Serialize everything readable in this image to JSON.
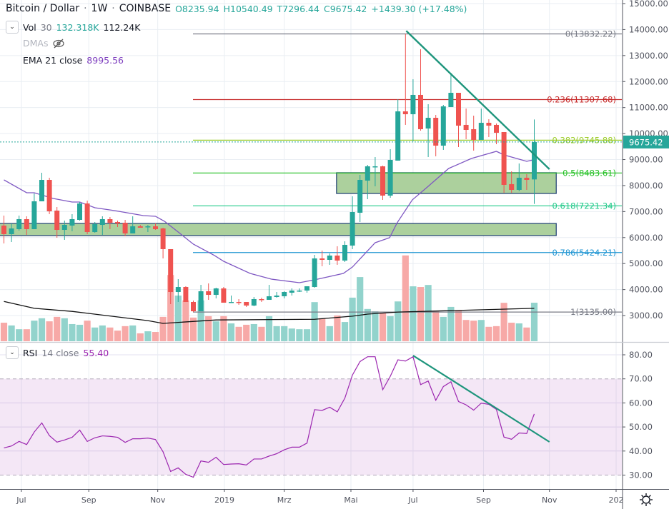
{
  "header": {
    "symbol": "Bitcoin / Dollar",
    "interval": "1W",
    "exchange": "COINBASE",
    "sep": "·",
    "open": "O8235.94",
    "high": "H10540.49",
    "low": "T7296.44",
    "close": "C9675.42",
    "change": "+1439.30 (+17.48%)"
  },
  "indicators": {
    "vol": {
      "name": "Vol",
      "length": "30",
      "value1": "132.318K",
      "value2": "112.24K"
    },
    "dmas": {
      "name": "DMAs"
    },
    "ema": {
      "name": "EMA 21 close",
      "value": "8995.56"
    },
    "rsi": {
      "name": "RSI",
      "params": "14 close",
      "value": "55.40"
    }
  },
  "colors": {
    "up": "#26a69a",
    "down": "#ef5350",
    "vol_up": "#92d3cc",
    "vol_down": "#f7a9a7",
    "ema": "#7e57c2",
    "rsi": "#9c27b0",
    "trend": "#1e957c",
    "zone_fill": "#a8cd98",
    "zone_border": "#2b4a7a"
  },
  "chart_data": {
    "type": "candlestick",
    "title": "Bitcoin / Dollar · 1W · COINBASE",
    "ylim": [
      2000,
      15000
    ],
    "price_ticks": [
      "15000.00",
      "14000.00",
      "13000.00",
      "12000.00",
      "11000.00",
      "10000.00",
      "9000.00",
      "8000.00",
      "7000.00",
      "6000.00",
      "5000.00",
      "4000.00",
      "3000.00"
    ],
    "time_ticks": [
      {
        "label": "Jul",
        "index": 2.3
      },
      {
        "label": "Sep",
        "index": 11.2
      },
      {
        "label": "Nov",
        "index": 20.3
      },
      {
        "label": "2019",
        "index": 29.1
      },
      {
        "label": "Mrz",
        "index": 37.0
      },
      {
        "label": "Mai",
        "index": 45.8
      },
      {
        "label": "Jul",
        "index": 54.0
      },
      {
        "label": "Sep",
        "index": 63.3
      },
      {
        "label": "Nov",
        "index": 72.0
      },
      {
        "label": "202",
        "index": 80.8
      }
    ],
    "ohlc": [
      [
        6461,
        6845,
        5774,
        6131
      ],
      [
        6131,
        6543,
        5829,
        6351
      ],
      [
        6323,
        6845,
        6268,
        6708
      ],
      [
        6708,
        6818,
        6104,
        6323
      ],
      [
        6323,
        7696,
        6323,
        7394
      ],
      [
        7394,
        8493,
        7394,
        8218
      ],
      [
        8218,
        8301,
        6900,
        7010
      ],
      [
        7037,
        7175,
        5994,
        6296
      ],
      [
        6296,
        6653,
        5912,
        6488
      ],
      [
        6461,
        6900,
        6241,
        6708
      ],
      [
        6680,
        7367,
        6653,
        7312
      ],
      [
        7312,
        7421,
        6131,
        6213
      ],
      [
        6213,
        6598,
        6186,
        6516
      ],
      [
        6488,
        6818,
        6104,
        6708
      ],
      [
        6708,
        6790,
        6323,
        6570
      ],
      [
        6598,
        6653,
        6406,
        6543
      ],
      [
        6570,
        6680,
        6049,
        6159
      ],
      [
        6159,
        6818,
        6159,
        6433
      ],
      [
        6433,
        6488,
        6378,
        6378
      ],
      [
        6406,
        6488,
        6213,
        6433
      ],
      [
        6433,
        6543,
        6296,
        6323
      ],
      [
        6351,
        6378,
        5198,
        5555
      ],
      [
        5555,
        5555,
        3440,
        3907
      ],
      [
        3907,
        4401,
        3523,
        4099
      ],
      [
        4099,
        4127,
        3523,
        3523
      ],
      [
        3523,
        3578,
        3138,
        3166
      ],
      [
        3166,
        4182,
        3166,
        3935
      ],
      [
        3935,
        4237,
        3605,
        3797
      ],
      [
        3797,
        4072,
        3660,
        4044
      ],
      [
        4044,
        4099,
        3495,
        3495
      ],
      [
        3495,
        3770,
        3495,
        3523
      ],
      [
        3523,
        3633,
        3413,
        3495
      ],
      [
        3523,
        3523,
        3331,
        3385
      ],
      [
        3385,
        3715,
        3358,
        3633
      ],
      [
        3633,
        3688,
        3523,
        3605
      ],
      [
        3605,
        4182,
        3605,
        3742
      ],
      [
        3715,
        3907,
        3688,
        3770
      ],
      [
        3742,
        3935,
        3660,
        3907
      ],
      [
        3880,
        4044,
        3770,
        3962
      ],
      [
        3935,
        4044,
        3907,
        3962
      ],
      [
        3962,
        4127,
        3880,
        4127
      ],
      [
        4099,
        5335,
        4072,
        5198
      ],
      [
        5198,
        5500,
        4896,
        5143
      ],
      [
        5143,
        5390,
        4951,
        5308
      ],
      [
        5308,
        5665,
        4951,
        5115
      ],
      [
        5115,
        5857,
        5061,
        5720
      ],
      [
        5692,
        7586,
        5555,
        6982
      ],
      [
        6955,
        8410,
        6598,
        8218
      ],
      [
        8191,
        8795,
        7476,
        8740
      ],
      [
        8713,
        9097,
        7971,
        8740
      ],
      [
        8740,
        8768,
        7449,
        7614
      ],
      [
        7614,
        9399,
        7531,
        8987
      ],
      [
        8960,
        11321,
        8960,
        10854
      ],
      [
        10854,
        13832,
        10333,
        10744
      ],
      [
        10744,
        12090,
        9701,
        11486
      ],
      [
        11486,
        13243,
        10113,
        10168
      ],
      [
        10195,
        11129,
        9097,
        10607
      ],
      [
        10607,
        10717,
        9125,
        9536
      ],
      [
        9536,
        11101,
        9372,
        11046
      ],
      [
        11019,
        12337,
        11019,
        11568
      ],
      [
        11568,
        11568,
        9481,
        10305
      ],
      [
        10333,
        10964,
        9783,
        10140
      ],
      [
        10168,
        10689,
        9344,
        9756
      ],
      [
        9756,
        10964,
        9756,
        10415
      ],
      [
        10415,
        10552,
        9866,
        10305
      ],
      [
        10333,
        10387,
        9591,
        10031
      ],
      [
        10058,
        10058,
        7724,
        8026
      ],
      [
        8054,
        8548,
        7724,
        7834
      ],
      [
        7834,
        8850,
        7779,
        8301
      ],
      [
        8301,
        8438,
        7834,
        8218
      ],
      [
        8235.94,
        10540.49,
        7296.44,
        9675.42
      ]
    ],
    "volume_k": [
      54,
      46,
      35,
      35,
      60,
      67,
      58,
      71,
      67,
      50,
      48,
      60,
      40,
      46,
      40,
      31,
      44,
      46,
      23,
      29,
      27,
      71,
      193,
      133,
      119,
      69,
      119,
      73,
      58,
      73,
      52,
      42,
      48,
      50,
      42,
      73,
      44,
      44,
      37,
      35,
      35,
      114,
      67,
      44,
      75,
      56,
      127,
      187,
      94,
      87,
      83,
      73,
      116,
      250,
      160,
      158,
      164,
      89,
      71,
      100,
      89,
      62,
      60,
      62,
      42,
      44,
      112,
      54,
      52,
      40,
      112.24
    ],
    "volume_ma_k": [
      [
        0,
        116
      ],
      [
        4,
        96
      ],
      [
        9,
        87
      ],
      [
        19,
        60
      ],
      [
        21,
        52
      ],
      [
        28,
        62
      ],
      [
        41,
        64
      ],
      [
        46,
        73
      ],
      [
        48,
        79
      ],
      [
        52,
        85
      ],
      [
        70,
        96
      ]
    ],
    "ema21": [
      [
        0,
        8218
      ],
      [
        3,
        7724
      ],
      [
        4,
        7724
      ],
      [
        6.5,
        7504
      ],
      [
        9,
        7367
      ],
      [
        10,
        7367
      ],
      [
        12,
        7147
      ],
      [
        14.6,
        7037
      ],
      [
        18.4,
        6845
      ],
      [
        20,
        6818
      ],
      [
        21.2,
        6625
      ],
      [
        23,
        6213
      ],
      [
        25,
        5747
      ],
      [
        27.8,
        5308
      ],
      [
        29,
        5088
      ],
      [
        32.5,
        4621
      ],
      [
        35.3,
        4401
      ],
      [
        39,
        4264
      ],
      [
        41,
        4374
      ],
      [
        44.8,
        4621
      ],
      [
        46,
        4868
      ],
      [
        49,
        5802
      ],
      [
        50.9,
        5994
      ],
      [
        51.9,
        6570
      ],
      [
        53.9,
        7449
      ],
      [
        56,
        7971
      ],
      [
        58.7,
        8658
      ],
      [
        61.7,
        9042
      ],
      [
        65,
        9317
      ],
      [
        66,
        9180
      ],
      [
        69,
        8933
      ],
      [
        70,
        8995.56
      ]
    ],
    "last_price": "9675.42",
    "fib_levels": [
      {
        "label": "0(13832.22)",
        "price": 13832.22,
        "color": "#787b86"
      },
      {
        "label": "0.236(11307.68)",
        "price": 11307.68,
        "color": "#c62828"
      },
      {
        "label": "0.382(9745.88)",
        "price": 9745.88,
        "color": "#9ccc2a"
      },
      {
        "label": "0.5(8483.61)",
        "price": 8483.61,
        "color": "#22c022"
      },
      {
        "label": "0.618(7221.34)",
        "price": 7221.34,
        "color": "#22c98a"
      },
      {
        "label": "0.786(5424.21)",
        "price": 5424.21,
        "color": "#2196d3"
      },
      {
        "label": "1(3135.00)",
        "price": 3135.0,
        "color": "#787b86"
      }
    ],
    "zones": [
      {
        "from_index": -1,
        "to_index": 72.9,
        "top": 6543,
        "bottom": 6076
      },
      {
        "from_index": 43.9,
        "to_index": 72.9,
        "top": 8493,
        "bottom": 7696
      }
    ],
    "price_trendline": [
      [
        53.1,
        13950
      ],
      [
        72.0,
        8630
      ]
    ],
    "rsi": {
      "ylim": [
        23,
        85
      ],
      "ticks": [
        "80.00",
        "70.00",
        "60.00",
        "50.00",
        "40.00",
        "30.00"
      ],
      "band": [
        30,
        70
      ],
      "values": [
        41.3,
        42.1,
        44.0,
        42.7,
        47.9,
        51.7,
        46.4,
        43.7,
        44.6,
        45.7,
        48.7,
        44.0,
        45.5,
        46.3,
        46.1,
        45.7,
        43.6,
        45.1,
        45.1,
        45.4,
        44.8,
        39.7,
        31.5,
        33.0,
        30.3,
        29.1,
        35.9,
        35.3,
        37.4,
        34.4,
        34.6,
        34.7,
        34.2,
        36.7,
        36.7,
        37.9,
        38.9,
        40.5,
        41.6,
        41.6,
        43.3,
        57.2,
        56.9,
        58.2,
        56.3,
        62.0,
        71.6,
        77.2,
        79.2,
        79.2,
        65.5,
        71.1,
        77.9,
        77.4,
        79.2,
        67.6,
        69.1,
        61.1,
        66.8,
        68.8,
        60.6,
        59.2,
        57.0,
        59.9,
        59.4,
        57.3,
        45.8,
        44.9,
        47.5,
        47.3,
        55.4
      ],
      "trendline": [
        [
          54.0,
          79.7
        ],
        [
          72.0,
          43.8
        ]
      ]
    }
  }
}
